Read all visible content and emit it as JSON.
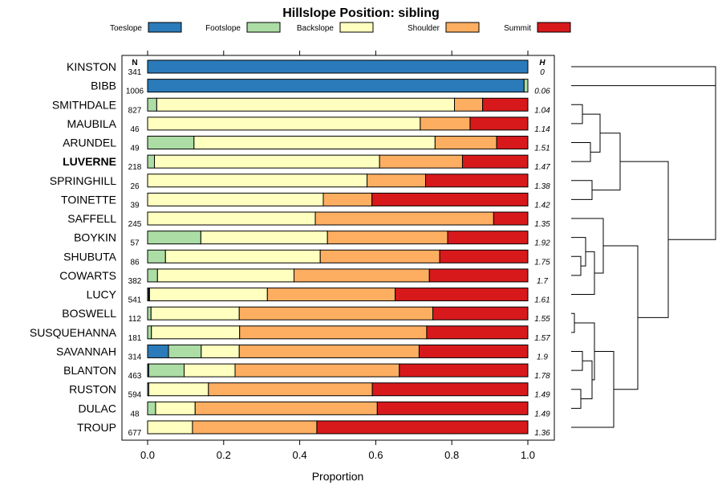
{
  "chart_data": {
    "type": "bar",
    "stacked": true,
    "orientation": "horizontal",
    "title": "Hillslope Position: sibling",
    "xlabel": "Proportion",
    "xlim": [
      0,
      1
    ],
    "xticks": [
      "0.0",
      "0.2",
      "0.4",
      "0.6",
      "0.8",
      "1.0"
    ],
    "xtick_values": [
      0,
      0.2,
      0.4,
      0.6,
      0.8,
      1.0
    ],
    "n_header": "N",
    "h_header": "H",
    "highlight": "LUVERNE",
    "legend": [
      {
        "name": "Toeslope",
        "color": "#2b7bba"
      },
      {
        "name": "Footslope",
        "color": "#abdda4"
      },
      {
        "name": "Backslope",
        "color": "#ffffbf"
      },
      {
        "name": "Shoulder",
        "color": "#fdae61"
      },
      {
        "name": "Summit",
        "color": "#d7191c"
      }
    ],
    "categories": [
      "KINSTON",
      "BIBB",
      "SMITHDALE",
      "MAUBILA",
      "ARUNDEL",
      "LUVERNE",
      "SPRINGHILL",
      "TOINETTE",
      "SAFFELL",
      "BOYKIN",
      "SHUBUTA",
      "COWARTS",
      "LUCY",
      "BOSWELL",
      "SUSQUEHANNA",
      "SAVANNAH",
      "BLANTON",
      "RUSTON",
      "DULAC",
      "TROUP"
    ],
    "n": [
      "341",
      "1006",
      "827",
      "46",
      "49",
      "218",
      "26",
      "39",
      "245",
      "57",
      "86",
      "382",
      "541",
      "112",
      "181",
      "314",
      "463",
      "594",
      "48",
      "677"
    ],
    "h": [
      "0",
      "0.06",
      "1.04",
      "1.14",
      "1.51",
      "1.47",
      "1.38",
      "1.42",
      "1.35",
      "1.92",
      "1.75",
      "1.7",
      "1.61",
      "1.55",
      "1.57",
      "1.9",
      "1.78",
      "1.49",
      "1.49",
      "1.36"
    ],
    "series": [
      {
        "name": "Toeslope",
        "values": [
          1.0,
          0.99,
          0.0,
          0.0,
          0.0,
          0.0,
          0.0,
          0.0,
          0.0,
          0.0,
          0.0,
          0.0,
          0.003,
          0.0,
          0.0,
          0.055,
          0.003,
          0.0,
          0.0,
          0.0
        ]
      },
      {
        "name": "Footslope",
        "values": [
          0.0,
          0.01,
          0.024,
          0.0,
          0.122,
          0.018,
          0.0,
          0.0,
          0.0,
          0.14,
          0.047,
          0.026,
          0.002,
          0.009,
          0.01,
          0.086,
          0.093,
          0.003,
          0.021,
          0.0
        ]
      },
      {
        "name": "Backslope",
        "values": [
          0.0,
          0.0,
          0.783,
          0.717,
          0.634,
          0.592,
          0.577,
          0.462,
          0.441,
          0.333,
          0.407,
          0.359,
          0.31,
          0.232,
          0.232,
          0.1,
          0.134,
          0.157,
          0.104,
          0.118
        ]
      },
      {
        "name": "Shoulder",
        "values": [
          0.0,
          0.0,
          0.074,
          0.131,
          0.162,
          0.218,
          0.154,
          0.128,
          0.469,
          0.316,
          0.314,
          0.356,
          0.336,
          0.509,
          0.492,
          0.473,
          0.432,
          0.431,
          0.479,
          0.327
        ]
      },
      {
        "name": "Summit",
        "values": [
          0.0,
          0.0,
          0.119,
          0.152,
          0.082,
          0.172,
          0.269,
          0.41,
          0.09,
          0.211,
          0.232,
          0.259,
          0.349,
          0.25,
          0.266,
          0.286,
          0.338,
          0.409,
          0.396,
          0.555
        ]
      }
    ]
  }
}
